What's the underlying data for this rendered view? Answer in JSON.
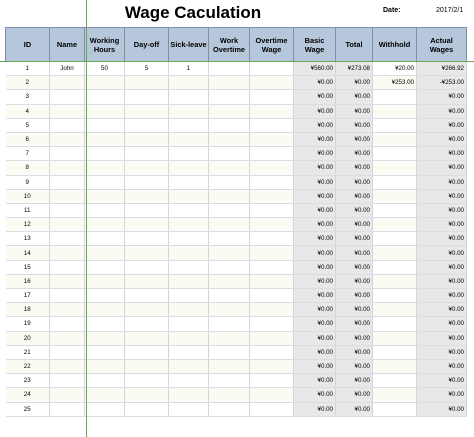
{
  "title": "Wage Caculation",
  "date_label": "Date:",
  "date_value": "2017/2/1",
  "columns": [
    "ID",
    "Name",
    "Working Hours",
    "Day-off",
    "Sick-leave",
    "Work Overtime",
    "Overtime Wage",
    "Basic Wage",
    "Total",
    "Withhold",
    "Actual Wages"
  ],
  "rows": [
    {
      "id": "1",
      "name": "John",
      "working_hours": "50",
      "day_off": "5",
      "sick_leave": "1",
      "work_overtime": "",
      "overtime_wage": "",
      "basic_wage": "¥560.00",
      "total": "¥273.08",
      "withhold": "¥20.00",
      "actual_wages": "¥266.92"
    },
    {
      "id": "2",
      "name": "",
      "working_hours": "",
      "day_off": "",
      "sick_leave": "",
      "work_overtime": "",
      "overtime_wage": "",
      "basic_wage": "¥0.00",
      "total": "¥0.00",
      "withhold": "¥253.00",
      "actual_wages": "-¥253.00"
    },
    {
      "id": "3",
      "name": "",
      "working_hours": "",
      "day_off": "",
      "sick_leave": "",
      "work_overtime": "",
      "overtime_wage": "",
      "basic_wage": "¥0.00",
      "total": "¥0.00",
      "withhold": "",
      "actual_wages": "¥0.00"
    },
    {
      "id": "4",
      "name": "",
      "working_hours": "",
      "day_off": "",
      "sick_leave": "",
      "work_overtime": "",
      "overtime_wage": "",
      "basic_wage": "¥0.00",
      "total": "¥0.00",
      "withhold": "",
      "actual_wages": "¥0.00"
    },
    {
      "id": "5",
      "name": "",
      "working_hours": "",
      "day_off": "",
      "sick_leave": "",
      "work_overtime": "",
      "overtime_wage": "",
      "basic_wage": "¥0.00",
      "total": "¥0.00",
      "withhold": "",
      "actual_wages": "¥0.00"
    },
    {
      "id": "6",
      "name": "",
      "working_hours": "",
      "day_off": "",
      "sick_leave": "",
      "work_overtime": "",
      "overtime_wage": "",
      "basic_wage": "¥0.00",
      "total": "¥0.00",
      "withhold": "",
      "actual_wages": "¥0.00"
    },
    {
      "id": "7",
      "name": "",
      "working_hours": "",
      "day_off": "",
      "sick_leave": "",
      "work_overtime": "",
      "overtime_wage": "",
      "basic_wage": "¥0.00",
      "total": "¥0.00",
      "withhold": "",
      "actual_wages": "¥0.00"
    },
    {
      "id": "8",
      "name": "",
      "working_hours": "",
      "day_off": "",
      "sick_leave": "",
      "work_overtime": "",
      "overtime_wage": "",
      "basic_wage": "¥0.00",
      "total": "¥0.00",
      "withhold": "",
      "actual_wages": "¥0.00"
    },
    {
      "id": "9",
      "name": "",
      "working_hours": "",
      "day_off": "",
      "sick_leave": "",
      "work_overtime": "",
      "overtime_wage": "",
      "basic_wage": "¥0.00",
      "total": "¥0.00",
      "withhold": "",
      "actual_wages": "¥0.00"
    },
    {
      "id": "10",
      "name": "",
      "working_hours": "",
      "day_off": "",
      "sick_leave": "",
      "work_overtime": "",
      "overtime_wage": "",
      "basic_wage": "¥0.00",
      "total": "¥0.00",
      "withhold": "",
      "actual_wages": "¥0.00"
    },
    {
      "id": "11",
      "name": "",
      "working_hours": "",
      "day_off": "",
      "sick_leave": "",
      "work_overtime": "",
      "overtime_wage": "",
      "basic_wage": "¥0.00",
      "total": "¥0.00",
      "withhold": "",
      "actual_wages": "¥0.00"
    },
    {
      "id": "12",
      "name": "",
      "working_hours": "",
      "day_off": "",
      "sick_leave": "",
      "work_overtime": "",
      "overtime_wage": "",
      "basic_wage": "¥0.00",
      "total": "¥0.00",
      "withhold": "",
      "actual_wages": "¥0.00"
    },
    {
      "id": "13",
      "name": "",
      "working_hours": "",
      "day_off": "",
      "sick_leave": "",
      "work_overtime": "",
      "overtime_wage": "",
      "basic_wage": "¥0.00",
      "total": "¥0.00",
      "withhold": "",
      "actual_wages": "¥0.00"
    },
    {
      "id": "14",
      "name": "",
      "working_hours": "",
      "day_off": "",
      "sick_leave": "",
      "work_overtime": "",
      "overtime_wage": "",
      "basic_wage": "¥0.00",
      "total": "¥0.00",
      "withhold": "",
      "actual_wages": "¥0.00"
    },
    {
      "id": "15",
      "name": "",
      "working_hours": "",
      "day_off": "",
      "sick_leave": "",
      "work_overtime": "",
      "overtime_wage": "",
      "basic_wage": "¥0.00",
      "total": "¥0.00",
      "withhold": "",
      "actual_wages": "¥0.00"
    },
    {
      "id": "16",
      "name": "",
      "working_hours": "",
      "day_off": "",
      "sick_leave": "",
      "work_overtime": "",
      "overtime_wage": "",
      "basic_wage": "¥0.00",
      "total": "¥0.00",
      "withhold": "",
      "actual_wages": "¥0.00"
    },
    {
      "id": "17",
      "name": "",
      "working_hours": "",
      "day_off": "",
      "sick_leave": "",
      "work_overtime": "",
      "overtime_wage": "",
      "basic_wage": "¥0.00",
      "total": "¥0.00",
      "withhold": "",
      "actual_wages": "¥0.00"
    },
    {
      "id": "18",
      "name": "",
      "working_hours": "",
      "day_off": "",
      "sick_leave": "",
      "work_overtime": "",
      "overtime_wage": "",
      "basic_wage": "¥0.00",
      "total": "¥0.00",
      "withhold": "",
      "actual_wages": "¥0.00"
    },
    {
      "id": "19",
      "name": "",
      "working_hours": "",
      "day_off": "",
      "sick_leave": "",
      "work_overtime": "",
      "overtime_wage": "",
      "basic_wage": "¥0.00",
      "total": "¥0.00",
      "withhold": "",
      "actual_wages": "¥0.00"
    },
    {
      "id": "20",
      "name": "",
      "working_hours": "",
      "day_off": "",
      "sick_leave": "",
      "work_overtime": "",
      "overtime_wage": "",
      "basic_wage": "¥0.00",
      "total": "¥0.00",
      "withhold": "",
      "actual_wages": "¥0.00"
    },
    {
      "id": "21",
      "name": "",
      "working_hours": "",
      "day_off": "",
      "sick_leave": "",
      "work_overtime": "",
      "overtime_wage": "",
      "basic_wage": "¥0.00",
      "total": "¥0.00",
      "withhold": "",
      "actual_wages": "¥0.00"
    },
    {
      "id": "22",
      "name": "",
      "working_hours": "",
      "day_off": "",
      "sick_leave": "",
      "work_overtime": "",
      "overtime_wage": "",
      "basic_wage": "¥0.00",
      "total": "¥0.00",
      "withhold": "",
      "actual_wages": "¥0.00"
    },
    {
      "id": "23",
      "name": "",
      "working_hours": "",
      "day_off": "",
      "sick_leave": "",
      "work_overtime": "",
      "overtime_wage": "",
      "basic_wage": "¥0.00",
      "total": "¥0.00",
      "withhold": "",
      "actual_wages": "¥0.00"
    },
    {
      "id": "24",
      "name": "",
      "working_hours": "",
      "day_off": "",
      "sick_leave": "",
      "work_overtime": "",
      "overtime_wage": "",
      "basic_wage": "¥0.00",
      "total": "¥0.00",
      "withhold": "",
      "actual_wages": "¥0.00"
    },
    {
      "id": "25",
      "name": "",
      "working_hours": "",
      "day_off": "",
      "sick_leave": "",
      "work_overtime": "",
      "overtime_wage": "",
      "basic_wage": "¥0.00",
      "total": "¥0.00",
      "withhold": "",
      "actual_wages": "¥0.00"
    }
  ],
  "colors": {
    "header_bg": "#b7c7db",
    "calc_cell_bg": "#e8e8e8",
    "alt_row_bg": "#fcfbf3",
    "freeze_line": "#6aa84f"
  }
}
